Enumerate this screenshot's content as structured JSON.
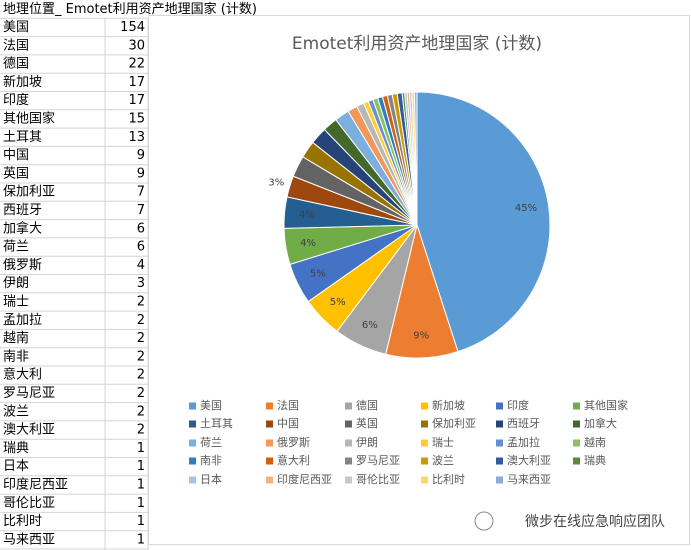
{
  "table": {
    "header": "地理位置_ Emotet利用资产地理国家 (计数)",
    "rows": [
      [
        "美国",
        154
      ],
      [
        "法国",
        30
      ],
      [
        "德国",
        22
      ],
      [
        "新加坡",
        17
      ],
      [
        "印度",
        17
      ],
      [
        "其他国家",
        15
      ],
      [
        "土耳其",
        13
      ],
      [
        "中国",
        9
      ],
      [
        "英国",
        9
      ],
      [
        "保加利亚",
        7
      ],
      [
        "西班牙",
        7
      ],
      [
        "加拿大",
        6
      ],
      [
        "荷兰",
        6
      ],
      [
        "俄罗斯",
        4
      ],
      [
        "伊朗",
        3
      ],
      [
        "瑞士",
        2
      ],
      [
        "孟加拉",
        2
      ],
      [
        "越南",
        2
      ],
      [
        "南非",
        2
      ],
      [
        "意大利",
        2
      ],
      [
        "罗马尼亚",
        2
      ],
      [
        "波兰",
        2
      ],
      [
        "澳大利亚",
        2
      ],
      [
        "瑞典",
        1
      ],
      [
        "日本",
        1
      ],
      [
        "印度尼西亚",
        1
      ],
      [
        "哥伦比亚",
        1
      ],
      [
        "比利时",
        1
      ],
      [
        "马来西亚",
        1
      ]
    ]
  },
  "chart_data": {
    "type": "pie",
    "title": "Emotet利用资产地理国家 (计数)",
    "categories": [
      "美国",
      "法国",
      "德国",
      "新加坡",
      "印度",
      "其他国家",
      "土耳其",
      "中国",
      "英国",
      "保加利亚",
      "西班牙",
      "加拿大",
      "荷兰",
      "俄罗斯",
      "伊朗",
      "瑞士",
      "孟加拉",
      "越南",
      "南非",
      "意大利",
      "罗马尼亚",
      "波兰",
      "澳大利亚",
      "瑞典",
      "日本",
      "印度尼西亚",
      "哥伦比亚",
      "比利时",
      "马来西亚"
    ],
    "values": [
      45.2,
      8.8,
      6.5,
      5.0,
      5.0,
      4.4,
      3.8,
      2.6,
      2.6,
      2.1,
      2.1,
      1.8,
      1.8,
      1.2,
      0.9,
      0.6,
      0.6,
      0.6,
      0.6,
      0.6,
      0.6,
      0.6,
      0.6,
      0.3,
      0.3,
      0.3,
      0.3,
      0.3,
      0.3
    ],
    "value_labels": [
      "45%",
      "9%",
      "6%",
      "5%",
      "5%",
      "4%",
      "4%",
      "3%",
      null,
      null,
      null,
      null,
      null,
      null,
      null,
      null,
      null,
      null,
      null,
      null,
      null,
      null,
      null,
      null,
      null,
      null,
      null,
      null,
      null
    ],
    "colors": [
      "#5B9BD5",
      "#ED7D31",
      "#A5A5A5",
      "#FFC000",
      "#4472C4",
      "#70AD47",
      "#255E91",
      "#9E480E",
      "#636363",
      "#997300",
      "#264478",
      "#43682B",
      "#7CAFDD",
      "#F1975A",
      "#B7B7B7",
      "#FFCD33",
      "#698ED0",
      "#8CC168",
      "#327DC2",
      "#D26012",
      "#848484",
      "#CC9A00",
      "#335AA1",
      "#5A8A39",
      "#A2C4E6",
      "#F4B183",
      "#C9C9C9",
      "#FFD966",
      "#8FAADC"
    ],
    "legend": "bottom"
  },
  "watermark": "微步在线应急响应团队"
}
